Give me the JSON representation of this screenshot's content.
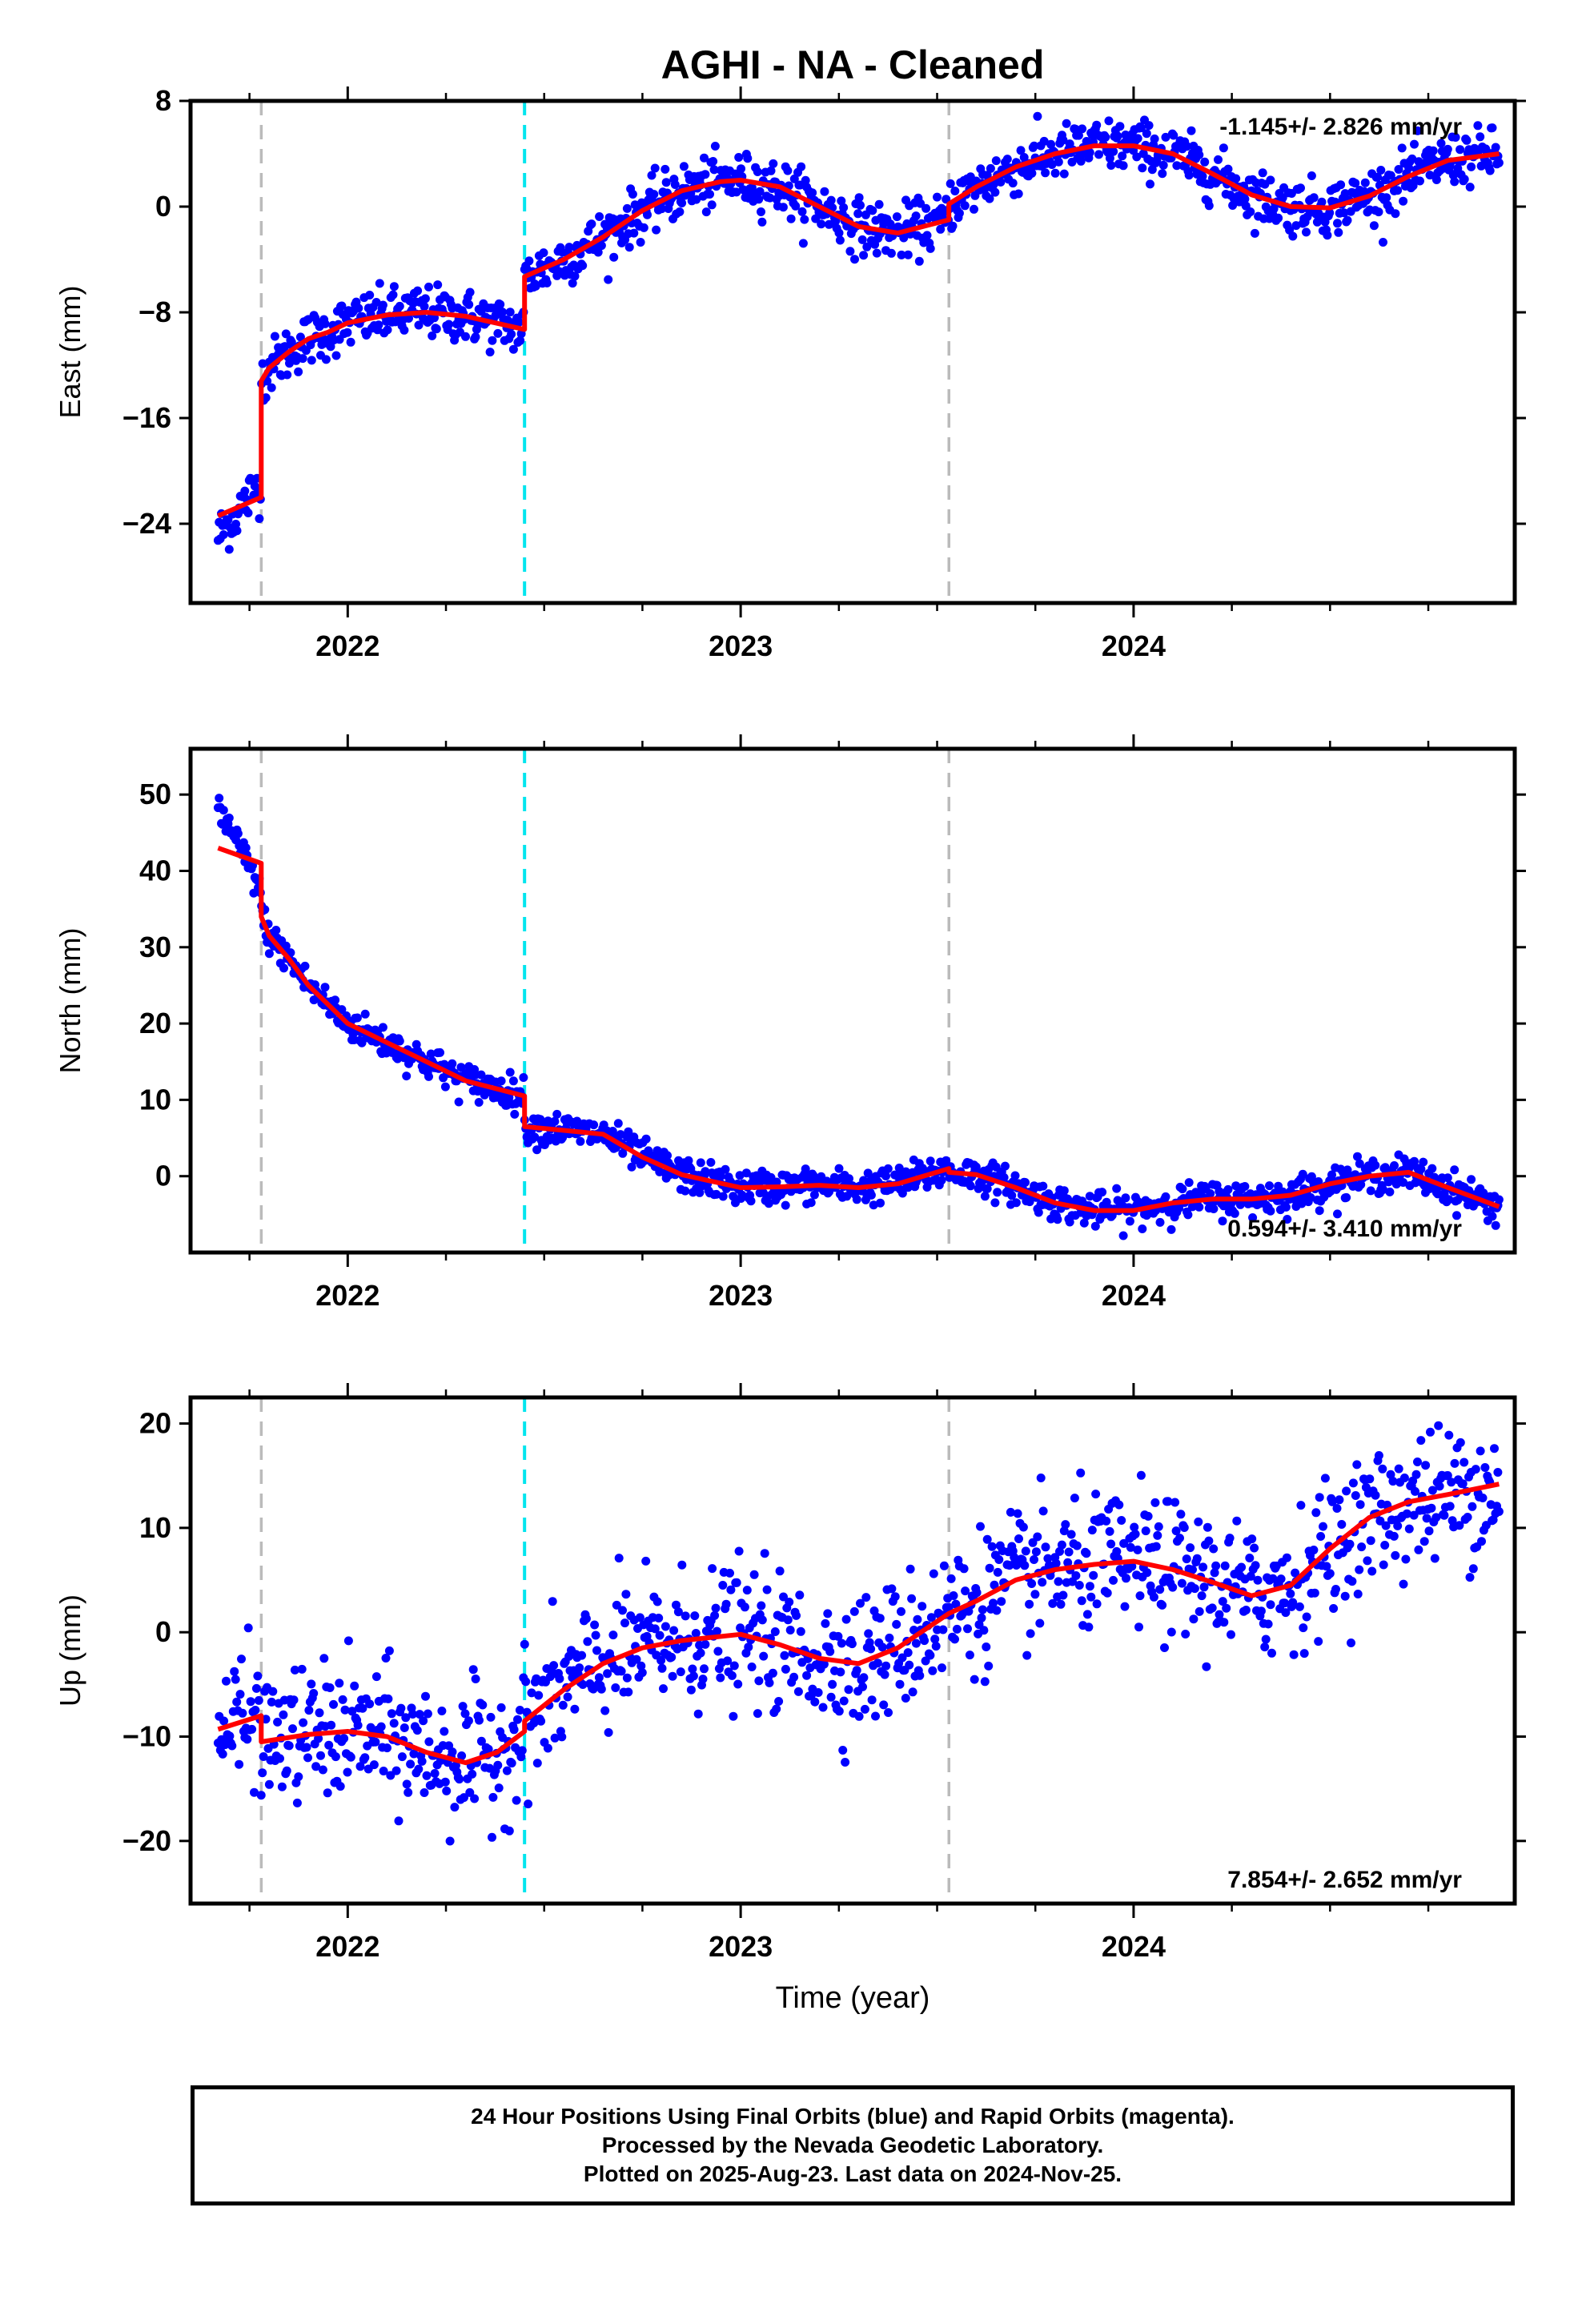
{
  "title": "AGHI  - NA - Cleaned",
  "chart_data": [
    {
      "type": "scatter",
      "component": "east",
      "ylabel": "East (mm)",
      "xlabel": "",
      "xlim": [
        2021.6,
        2024.97
      ],
      "ylim": [
        -30.0,
        8.0
      ],
      "yticks": [
        -24,
        -16,
        -8,
        0,
        8
      ],
      "ytick_labels": [
        "−24",
        "−16",
        "−8",
        "0",
        "8"
      ],
      "xticks": [
        2022,
        2023,
        2024
      ],
      "xtick_labels": [
        "2022",
        "2023",
        "2024"
      ],
      "xminor_ticks": [
        2021.75,
        2022.25,
        2022.5,
        2022.75,
        2023.25,
        2023.5,
        2023.75,
        2024.25,
        2024.5,
        2024.75
      ],
      "rate_label": "-1.145+/- 2.826 mm/yr",
      "rate_position": "top-right",
      "breaks": [
        {
          "x": 2021.78,
          "color": "#bbbbbb"
        },
        {
          "x": 2022.45,
          "color": "#00e5ee"
        },
        {
          "x": 2023.53,
          "color": "#bbbbbb"
        }
      ],
      "model_line": {
        "color": "#ff0000",
        "x": [
          2021.67,
          2021.78,
          2021.78,
          2021.8,
          2021.85,
          2021.9,
          2021.95,
          2022.0,
          2022.1,
          2022.2,
          2022.3,
          2022.45,
          2022.45,
          2022.55,
          2022.65,
          2022.75,
          2022.85,
          2022.95,
          2023.0,
          2023.1,
          2023.2,
          2023.3,
          2023.4,
          2023.53,
          2023.53,
          2023.6,
          2023.7,
          2023.8,
          2023.9,
          2024.0,
          2024.1,
          2024.2,
          2024.3,
          2024.4,
          2024.5,
          2024.6,
          2024.7,
          2024.8,
          2024.93
        ],
        "y": [
          -23.4,
          -22.0,
          -13.2,
          -12.2,
          -11.0,
          -10.0,
          -9.5,
          -8.8,
          -8.2,
          -8.0,
          -8.3,
          -9.3,
          -5.3,
          -4.0,
          -2.3,
          -0.3,
          1.2,
          1.9,
          2.0,
          1.5,
          0.0,
          -1.5,
          -2.0,
          -1.0,
          0.2,
          1.5,
          3.0,
          4.0,
          4.6,
          4.6,
          4.0,
          2.5,
          0.9,
          0.0,
          -0.1,
          0.8,
          2.3,
          3.5,
          4.0
        ]
      },
      "points": {
        "color": "#0000ff",
        "count": 1150,
        "x_range": [
          2021.67,
          2024.93
        ],
        "scatter_sd": 1.0
      }
    },
    {
      "type": "scatter",
      "component": "north",
      "ylabel": "North (mm)",
      "xlabel": "",
      "xlim": [
        2021.6,
        2024.97
      ],
      "ylim": [
        -10.0,
        56.0
      ],
      "yticks": [
        0,
        10,
        20,
        30,
        40,
        50
      ],
      "ytick_labels": [
        "0",
        "10",
        "20",
        "30",
        "40",
        "50"
      ],
      "xticks": [
        2022,
        2023,
        2024
      ],
      "xtick_labels": [
        "2022",
        "2023",
        "2024"
      ],
      "xminor_ticks": [
        2021.75,
        2022.25,
        2022.5,
        2022.75,
        2023.25,
        2023.5,
        2023.75,
        2024.25,
        2024.5,
        2024.75
      ],
      "rate_label": "0.594+/- 3.410 mm/yr",
      "rate_position": "bottom-right",
      "breaks": [
        {
          "x": 2021.78,
          "color": "#bbbbbb"
        },
        {
          "x": 2022.45,
          "color": "#00e5ee"
        },
        {
          "x": 2023.53,
          "color": "#bbbbbb"
        }
      ],
      "model_line": {
        "color": "#ff0000",
        "x": [
          2021.67,
          2021.78,
          2021.78,
          2021.8,
          2021.85,
          2021.9,
          2022.0,
          2022.1,
          2022.2,
          2022.3,
          2022.45,
          2022.45,
          2022.55,
          2022.65,
          2022.75,
          2022.85,
          2023.0,
          2023.1,
          2023.2,
          2023.3,
          2023.4,
          2023.53,
          2023.53,
          2023.6,
          2023.7,
          2023.8,
          2023.9,
          2024.0,
          2024.1,
          2024.2,
          2024.3,
          2024.4,
          2024.5,
          2024.6,
          2024.7,
          2024.8,
          2024.93
        ],
        "y": [
          43.0,
          41.0,
          34.0,
          31.5,
          28.5,
          25.0,
          20.0,
          17.5,
          15.0,
          12.5,
          10.5,
          6.5,
          6.0,
          5.5,
          2.5,
          0.2,
          -1.5,
          -1.4,
          -1.2,
          -1.5,
          -1.0,
          1.0,
          0.5,
          0.2,
          -1.5,
          -3.5,
          -4.5,
          -4.5,
          -3.5,
          -3.0,
          -3.0,
          -2.5,
          -1.0,
          0.0,
          0.5,
          -1.5,
          -4.0
        ]
      },
      "points": {
        "color": "#0000ff",
        "count": 1150,
        "x_range": [
          2021.67,
          2024.93
        ],
        "scatter_sd": 1.1
      }
    },
    {
      "type": "scatter",
      "component": "up",
      "ylabel": "Up (mm)",
      "xlabel": "Time (year)",
      "xlim": [
        2021.6,
        2024.97
      ],
      "ylim": [
        -26.0,
        22.5
      ],
      "yticks": [
        -20,
        -10,
        0,
        10,
        20
      ],
      "ytick_labels": [
        "−20",
        "−10",
        "0",
        "10",
        "20"
      ],
      "xticks": [
        2022,
        2023,
        2024
      ],
      "xtick_labels": [
        "2022",
        "2023",
        "2024"
      ],
      "xminor_ticks": [
        2021.75,
        2022.25,
        2022.5,
        2022.75,
        2023.25,
        2023.5,
        2023.75,
        2024.25,
        2024.5,
        2024.75
      ],
      "rate_label": "7.854+/- 2.652 mm/yr",
      "rate_position": "bottom-right",
      "breaks": [
        {
          "x": 2021.78,
          "color": "#bbbbbb"
        },
        {
          "x": 2022.45,
          "color": "#00e5ee"
        },
        {
          "x": 2023.53,
          "color": "#bbbbbb"
        }
      ],
      "model_line": {
        "color": "#ff0000",
        "x": [
          2021.67,
          2021.78,
          2021.78,
          2021.9,
          2022.0,
          2022.1,
          2022.2,
          2022.3,
          2022.38,
          2022.45,
          2022.45,
          2022.55,
          2022.65,
          2022.75,
          2022.85,
          2023.0,
          2023.1,
          2023.2,
          2023.3,
          2023.4,
          2023.53,
          2023.6,
          2023.7,
          2023.8,
          2023.9,
          2024.0,
          2024.1,
          2024.2,
          2024.3,
          2024.4,
          2024.5,
          2024.6,
          2024.7,
          2024.8,
          2024.93
        ],
        "y": [
          -9.3,
          -8.0,
          -10.5,
          -9.8,
          -9.5,
          -10.0,
          -11.5,
          -12.5,
          -11.5,
          -9.5,
          -8.5,
          -5.5,
          -3.0,
          -1.5,
          -0.8,
          -0.2,
          -1.2,
          -2.5,
          -3.0,
          -1.5,
          1.8,
          3.0,
          5.0,
          6.0,
          6.5,
          6.8,
          6.0,
          4.8,
          3.5,
          4.5,
          8.0,
          11.0,
          12.5,
          13.2,
          14.2
        ]
      },
      "points": {
        "color": "#0000ff",
        "count": 1100,
        "x_range": [
          2021.67,
          2024.93
        ],
        "scatter_sd": 3.2
      }
    }
  ],
  "caption": {
    "line1": "24 Hour Positions Using Final Orbits (blue) and Rapid Orbits (magenta).",
    "line2": "Processed by the Nevada Geodetic Laboratory.",
    "line3": "Plotted on 2025-Aug-23. Last data on 2024-Nov-25."
  }
}
